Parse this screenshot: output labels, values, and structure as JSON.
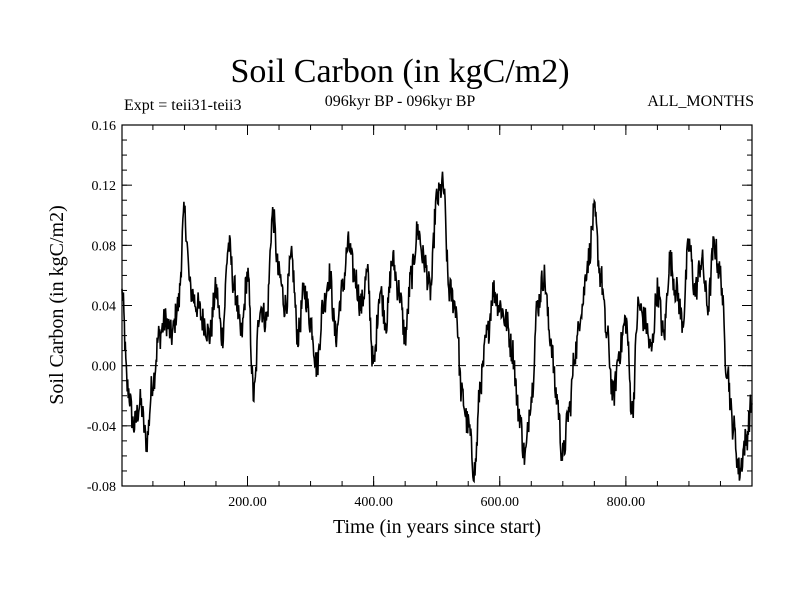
{
  "chart_data": {
    "type": "line",
    "title": "Soil Carbon (in kgC/m2)",
    "subtitle": "096kyr BP - 096kyr BP",
    "expt_label": "Expt = teii31-teii3",
    "months_label": "ALL_MONTHS",
    "xlabel": "Time (in years since start)",
    "ylabel": "Soil Carbon (in kgC/m2)",
    "xlim": [
      1,
      1000
    ],
    "ylim": [
      -0.08,
      0.16
    ],
    "xticks": [
      200,
      400,
      600,
      800
    ],
    "xtick_labels": [
      "200.00",
      "400.00",
      "600.00",
      "800.00"
    ],
    "yticks": [
      -0.08,
      -0.04,
      0.0,
      0.04,
      0.08,
      0.12,
      0.16
    ],
    "ytick_labels": [
      "-0.08",
      "-0.04",
      "0.00",
      "0.04",
      "0.08",
      "0.12",
      "0.16"
    ],
    "zero_line": "dashed",
    "line_color": "#000000",
    "series": [
      {
        "x": [
          1,
          10,
          20,
          30,
          40,
          50,
          60,
          70,
          80,
          90,
          100,
          110,
          120,
          130,
          140,
          150,
          160,
          170,
          180,
          190,
          200,
          210,
          220,
          230,
          240,
          250,
          260,
          270,
          280,
          290,
          300,
          310,
          320,
          330,
          340,
          350,
          360,
          370,
          380,
          390,
          400,
          410,
          420,
          430,
          440,
          450,
          460,
          470,
          480,
          490,
          500,
          510,
          520,
          530,
          540,
          550,
          560,
          570,
          580,
          590,
          600,
          610,
          620,
          630,
          640,
          650,
          660,
          670,
          680,
          690,
          700,
          710,
          720,
          730,
          740,
          750,
          760,
          770,
          780,
          790,
          800,
          810,
          820,
          830,
          840,
          850,
          860,
          870,
          880,
          890,
          900,
          910,
          920,
          930,
          940,
          950,
          960,
          970,
          980,
          990,
          1000
        ],
        "values": [
          0.048,
          -0.015,
          -0.04,
          -0.025,
          -0.05,
          -0.01,
          0.02,
          0.03,
          0.02,
          0.04,
          0.1,
          0.05,
          0.04,
          0.03,
          0.02,
          0.05,
          0.02,
          0.08,
          0.05,
          0.02,
          0.06,
          -0.02,
          0.04,
          0.03,
          0.1,
          0.06,
          0.04,
          0.07,
          0.02,
          0.05,
          0.03,
          0.0,
          0.04,
          0.06,
          0.02,
          0.05,
          0.08,
          0.06,
          0.04,
          0.06,
          0.0,
          0.05,
          0.03,
          0.07,
          0.05,
          0.02,
          0.06,
          0.09,
          0.07,
          0.05,
          0.11,
          0.12,
          0.05,
          0.04,
          -0.02,
          -0.04,
          -0.07,
          -0.01,
          0.02,
          0.05,
          0.04,
          0.03,
          0.01,
          -0.03,
          -0.06,
          -0.02,
          0.04,
          0.06,
          0.02,
          -0.02,
          -0.06,
          -0.03,
          0.01,
          0.04,
          0.07,
          0.1,
          0.06,
          0.02,
          -0.02,
          0.01,
          0.03,
          -0.03,
          0.04,
          0.03,
          0.01,
          0.05,
          0.02,
          0.07,
          0.05,
          0.03,
          0.08,
          0.05,
          0.07,
          0.04,
          0.08,
          0.06,
          0.0,
          -0.04,
          -0.07,
          -0.05,
          -0.025
        ]
      }
    ]
  }
}
